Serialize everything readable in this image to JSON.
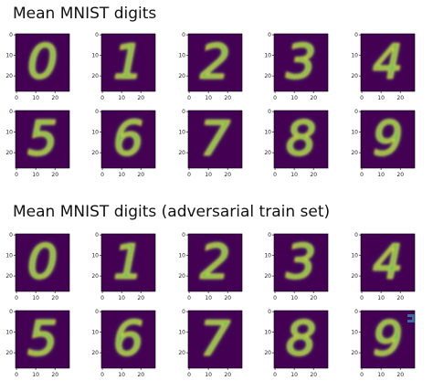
{
  "chart_data": [
    {
      "type": "image-grid",
      "title": "Mean MNIST digits",
      "xlim": [
        -0.5,
        27.5
      ],
      "ylim": [
        27.5,
        -0.5
      ],
      "xticks": [
        0,
        10,
        20
      ],
      "yticks": [
        0,
        10,
        20
      ]
    },
    {
      "type": "image-grid",
      "title": "Mean MNIST digits (adversarial train set)",
      "xlim": [
        -0.5,
        27.5
      ],
      "ylim": [
        27.5,
        -0.5
      ],
      "xticks": [
        0,
        10,
        20
      ],
      "yticks": [
        0,
        10,
        20
      ]
    }
  ]
}
